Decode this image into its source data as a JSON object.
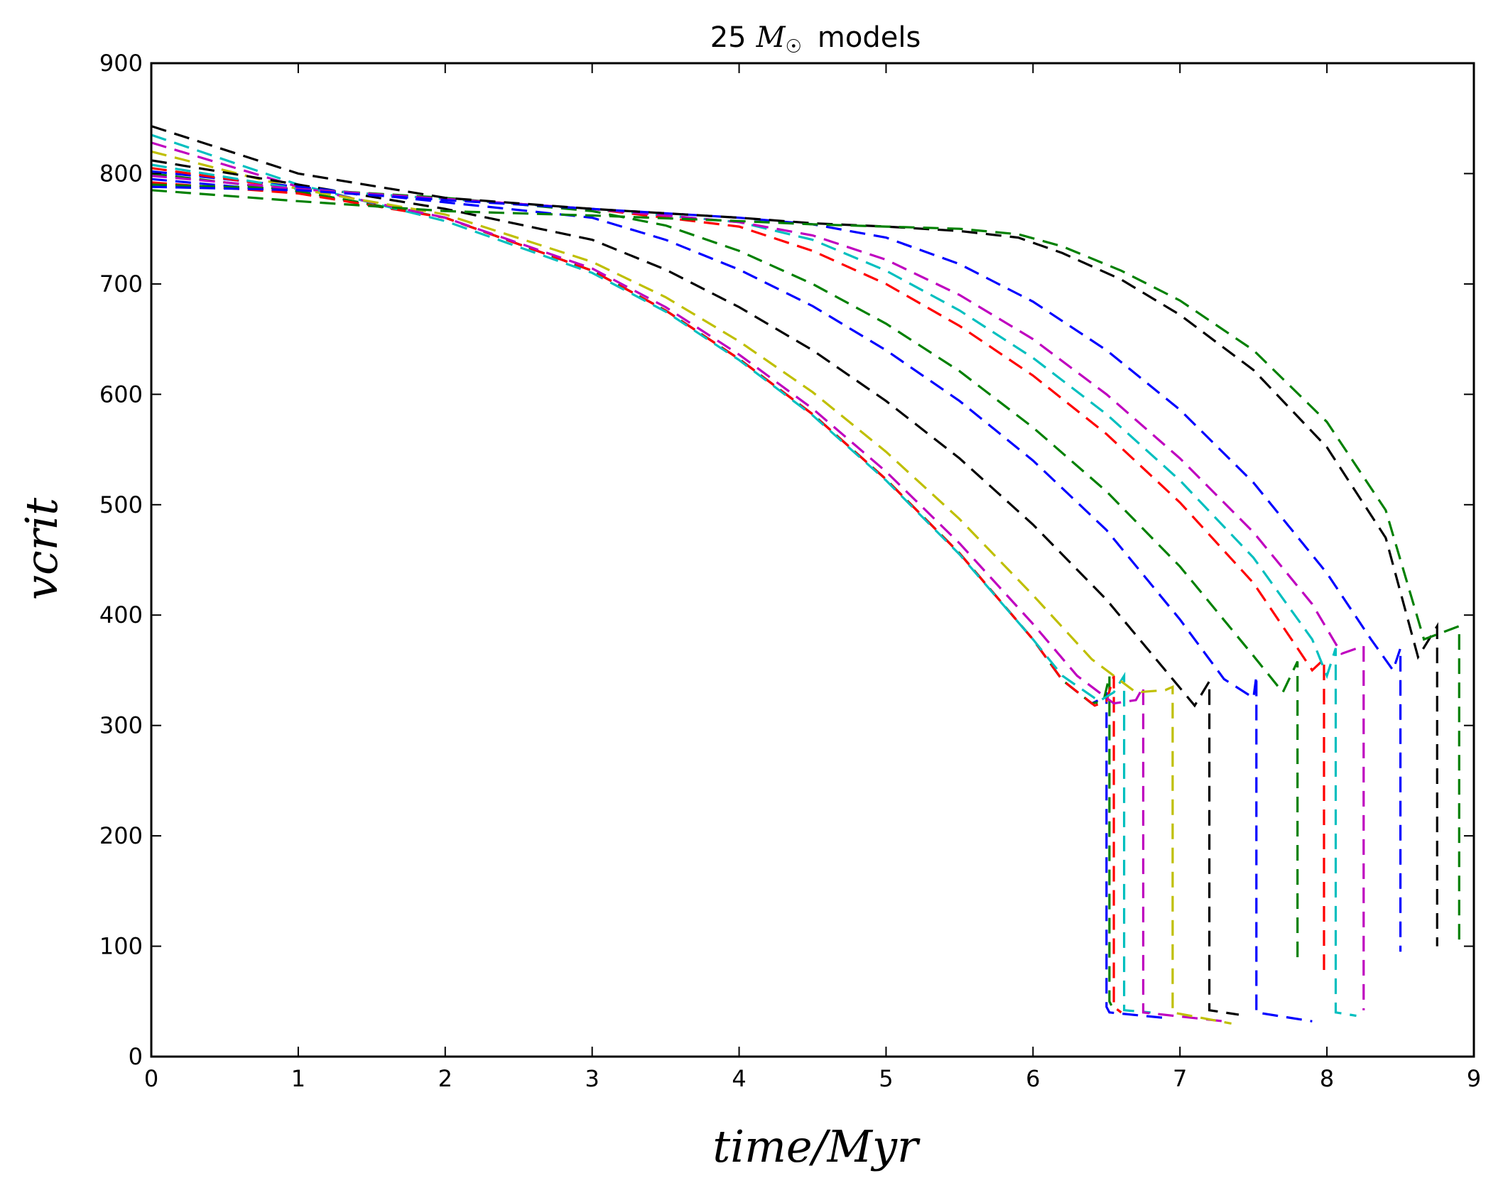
{
  "chart_data": {
    "type": "line",
    "title": "25 M☉  models",
    "title_parts": {
      "prefix": "25",
      "mass": "M",
      "sun": "☉",
      "suffix": "models"
    },
    "xlabel": "time/Myr",
    "ylabel": "vcrit",
    "xlim": [
      0,
      9
    ],
    "ylim": [
      0,
      900
    ],
    "xticks": [
      "0",
      "1",
      "2",
      "3",
      "4",
      "5",
      "6",
      "7",
      "8",
      "9"
    ],
    "yticks": [
      "0",
      "100",
      "200",
      "300",
      "400",
      "500",
      "600",
      "700",
      "800",
      "900"
    ],
    "grid": false,
    "legend": "none",
    "line_style": "dashed",
    "series": [
      {
        "color": "#0000ff",
        "x": [
          0,
          1,
          2,
          3,
          3.5,
          4,
          4.5,
          5,
          5.5,
          6,
          6.2,
          6.4,
          6.48,
          6.5,
          6.5,
          6.52,
          6.9
        ],
        "y": [
          795,
          783,
          760,
          712,
          676,
          632,
          582,
          523,
          456,
          378,
          341,
          320,
          325,
          330,
          45,
          40,
          35
        ]
      },
      {
        "color": "#008000",
        "x": [
          0,
          1,
          2,
          3,
          3.5,
          4,
          4.5,
          5,
          5.5,
          6,
          6.2,
          6.4,
          6.48,
          6.52,
          6.52,
          6.55
        ],
        "y": [
          800,
          784,
          760,
          712,
          676,
          632,
          582,
          523,
          456,
          378,
          341,
          320,
          322,
          345,
          50,
          42
        ]
      },
      {
        "color": "#ff0000",
        "x": [
          0,
          1,
          2,
          3,
          3.5,
          4,
          4.5,
          5,
          5.5,
          6,
          6.2,
          6.42,
          6.5,
          6.55,
          6.55,
          6.6
        ],
        "y": [
          792,
          782,
          760,
          712,
          676,
          632,
          582,
          523,
          456,
          378,
          341,
          318,
          322,
          345,
          45,
          40
        ]
      },
      {
        "color": "#00bfbf",
        "x": [
          0,
          1,
          2,
          3,
          3.5,
          4,
          4.5,
          5,
          5.5,
          6,
          6.2,
          6.45,
          6.55,
          6.62,
          6.62,
          6.8
        ],
        "y": [
          835,
          790,
          757,
          710,
          675,
          631,
          581,
          522,
          455,
          378,
          345,
          322,
          330,
          345,
          42,
          40
        ]
      },
      {
        "color": "#bf00bf",
        "x": [
          0,
          1,
          2,
          3,
          3.5,
          4,
          4.5,
          5,
          5.5,
          6,
          6.3,
          6.55,
          6.7,
          6.75,
          6.75,
          7.3
        ],
        "y": [
          828,
          788,
          760,
          714,
          679,
          636,
          587,
          530,
          465,
          392,
          345,
          320,
          323,
          335,
          40,
          32
        ]
      },
      {
        "color": "#bfbf00",
        "x": [
          0,
          1,
          2,
          3,
          3.5,
          4,
          4.5,
          5,
          5.5,
          6,
          6.4,
          6.7,
          6.9,
          6.95,
          6.95,
          7.35
        ],
        "y": [
          820,
          786,
          763,
          720,
          688,
          648,
          602,
          548,
          487,
          418,
          360,
          330,
          332,
          335,
          40,
          30
        ]
      },
      {
        "color": "#000000",
        "x": [
          0,
          1,
          2,
          3,
          3.5,
          4,
          4.5,
          5,
          5.5,
          6,
          6.5,
          6.9,
          7.1,
          7.2,
          7.2,
          7.4
        ],
        "y": [
          812,
          790,
          768,
          740,
          713,
          679,
          640,
          594,
          542,
          482,
          414,
          350,
          318,
          340,
          42,
          38
        ]
      },
      {
        "color": "#0000ff",
        "x": [
          0,
          1,
          2,
          3,
          3.5,
          4,
          4.5,
          5,
          5.5,
          6,
          6.5,
          7,
          7.3,
          7.5,
          7.52,
          7.52,
          7.9
        ],
        "y": [
          802,
          788,
          774,
          760,
          740,
          713,
          680,
          640,
          594,
          540,
          477,
          396,
          342,
          325,
          345,
          40,
          32
        ]
      },
      {
        "color": "#008000",
        "x": [
          0,
          1,
          2,
          3,
          3.5,
          4,
          4.5,
          5,
          5.5,
          6,
          6.5,
          7,
          7.5,
          7.7,
          7.8,
          7.8
        ],
        "y": [
          790,
          786,
          778,
          766,
          753,
          730,
          700,
          664,
          621,
          570,
          512,
          444,
          363,
          330,
          358,
          85
        ]
      },
      {
        "color": "#ff0000",
        "x": [
          0,
          1,
          2,
          3,
          4,
          4.5,
          5,
          5.5,
          6,
          6.5,
          7,
          7.5,
          7.8,
          7.9,
          7.98,
          7.98
        ],
        "y": [
          805,
          786,
          777,
          768,
          752,
          730,
          700,
          662,
          617,
          564,
          502,
          429,
          370,
          350,
          360,
          75
        ]
      },
      {
        "color": "#00bfbf",
        "x": [
          0,
          1,
          2,
          3,
          4,
          4.5,
          5,
          5.5,
          6,
          6.5,
          7,
          7.5,
          7.9,
          8.0,
          8.06,
          8.06,
          8.2
        ],
        "y": [
          808,
          786,
          777,
          768,
          756,
          740,
          712,
          676,
          633,
          582,
          522,
          452,
          378,
          345,
          370,
          40,
          37
        ]
      },
      {
        "color": "#bf00bf",
        "x": [
          0,
          1,
          2,
          3,
          4,
          4.5,
          5,
          5.5,
          6,
          6.5,
          7,
          7.5,
          7.9,
          8.1,
          8.25,
          8.25
        ],
        "y": [
          798,
          786,
          777,
          768,
          756,
          744,
          722,
          690,
          650,
          600,
          542,
          475,
          410,
          365,
          372,
          42
        ]
      },
      {
        "color": "#0000ff",
        "x": [
          0,
          1,
          2,
          3,
          4,
          4.5,
          5,
          5.5,
          6,
          6.5,
          7,
          7.5,
          8,
          8.3,
          8.45,
          8.5,
          8.5
        ],
        "y": [
          788,
          785,
          776,
          768,
          760,
          754,
          742,
          718,
          684,
          640,
          586,
          520,
          438,
          378,
          350,
          370,
          95
        ]
      },
      {
        "color": "#000000",
        "x": [
          0,
          1,
          2,
          3,
          4,
          4.5,
          5,
          5.5,
          5.9,
          6.2,
          6.6,
          7,
          7.5,
          8,
          8.4,
          8.62,
          8.75,
          8.75
        ],
        "y": [
          843,
          800,
          778,
          768,
          760,
          755,
          752,
          748,
          742,
          728,
          704,
          672,
          622,
          552,
          470,
          362,
          390,
          100
        ]
      },
      {
        "color": "#008000",
        "x": [
          0,
          1,
          2,
          3,
          4,
          4.5,
          5,
          5.5,
          5.9,
          6.2,
          6.6,
          7,
          7.5,
          8,
          8.4,
          8.66,
          8.9,
          8.9
        ],
        "y": [
          785,
          775,
          766,
          762,
          757,
          754,
          752,
          750,
          745,
          734,
          712,
          685,
          640,
          575,
          495,
          378,
          390,
          100
        ]
      }
    ]
  }
}
